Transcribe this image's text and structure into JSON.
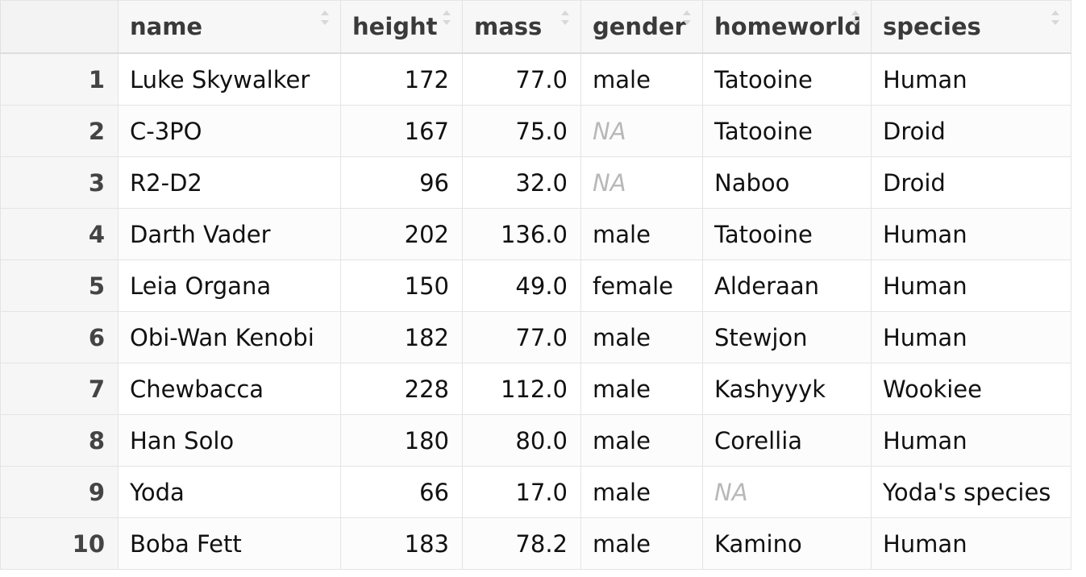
{
  "table": {
    "columns": [
      {
        "key": "name",
        "label": "name",
        "align": "left"
      },
      {
        "key": "height",
        "label": "height",
        "align": "right"
      },
      {
        "key": "mass",
        "label": "mass",
        "align": "right"
      },
      {
        "key": "gender",
        "label": "gender",
        "align": "left"
      },
      {
        "key": "homeworld",
        "label": "homeworld",
        "align": "left"
      },
      {
        "key": "species",
        "label": "species",
        "align": "left"
      }
    ],
    "rows": [
      {
        "index": "1",
        "name": "Luke Skywalker",
        "height": "172",
        "mass": "77.0",
        "gender": "male",
        "homeworld": "Tatooine",
        "species": "Human"
      },
      {
        "index": "2",
        "name": "C-3PO",
        "height": "167",
        "mass": "75.0",
        "gender": "NA",
        "homeworld": "Tatooine",
        "species": "Droid"
      },
      {
        "index": "3",
        "name": "R2-D2",
        "height": "96",
        "mass": "32.0",
        "gender": "NA",
        "homeworld": "Naboo",
        "species": "Droid"
      },
      {
        "index": "4",
        "name": "Darth Vader",
        "height": "202",
        "mass": "136.0",
        "gender": "male",
        "homeworld": "Tatooine",
        "species": "Human"
      },
      {
        "index": "5",
        "name": "Leia Organa",
        "height": "150",
        "mass": "49.0",
        "gender": "female",
        "homeworld": "Alderaan",
        "species": "Human"
      },
      {
        "index": "6",
        "name": "Obi-Wan Kenobi",
        "height": "182",
        "mass": "77.0",
        "gender": "male",
        "homeworld": "Stewjon",
        "species": "Human"
      },
      {
        "index": "7",
        "name": "Chewbacca",
        "height": "228",
        "mass": "112.0",
        "gender": "male",
        "homeworld": "Kashyyyk",
        "species": "Wookiee"
      },
      {
        "index": "8",
        "name": "Han Solo",
        "height": "180",
        "mass": "80.0",
        "gender": "male",
        "homeworld": "Corellia",
        "species": "Human"
      },
      {
        "index": "9",
        "name": "Yoda",
        "height": "66",
        "mass": "17.0",
        "gender": "male",
        "homeworld": "NA",
        "species": "Yoda's species"
      },
      {
        "index": "10",
        "name": "Boba Fett",
        "height": "183",
        "mass": "78.2",
        "gender": "male",
        "homeworld": "Kamino",
        "species": "Human"
      }
    ],
    "na_value": "NA"
  },
  "icons": {
    "sort": "sort-arrows-icon"
  },
  "colors": {
    "header_bg": "#f7f7f7",
    "index_bg": "#f6f6f6",
    "border": "#e4e4e4",
    "na_text": "#b8b8b8"
  }
}
